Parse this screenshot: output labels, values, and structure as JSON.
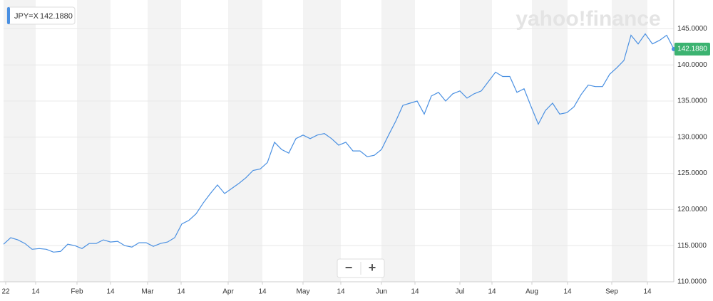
{
  "chart_data": {
    "type": "line",
    "symbol": "JPY=X",
    "last_price": {
      "value": 142.188,
      "label": "142.1880"
    },
    "watermark": "yahoo!finance",
    "series": [
      {
        "name": "JPY=X",
        "color": "#4a90e2",
        "values": [
          115.2,
          116.1,
          115.8,
          115.3,
          114.5,
          114.6,
          114.5,
          114.1,
          114.2,
          115.2,
          115.0,
          114.6,
          115.3,
          115.3,
          115.8,
          115.5,
          115.6,
          115.0,
          114.8,
          115.4,
          115.4,
          114.9,
          115.3,
          115.5,
          116.1,
          118.0,
          118.5,
          119.4,
          120.9,
          122.2,
          123.4,
          122.2,
          122.9,
          123.6,
          124.4,
          125.4,
          125.6,
          126.5,
          129.3,
          128.3,
          127.8,
          129.8,
          130.3,
          129.8,
          130.3,
          130.5,
          129.8,
          128.9,
          129.3,
          128.1,
          128.1,
          127.3,
          127.5,
          128.3,
          130.3,
          132.2,
          134.4,
          134.7,
          135.0,
          133.2,
          135.7,
          136.2,
          135.0,
          136.0,
          136.4,
          135.4,
          136.0,
          136.4,
          137.7,
          139.0,
          138.4,
          138.4,
          136.2,
          136.7,
          134.2,
          131.8,
          133.7,
          134.7,
          133.2,
          133.4,
          134.2,
          135.9,
          137.2,
          137.0,
          137.0,
          138.7,
          139.6,
          140.6,
          144.1,
          142.9,
          144.3,
          142.9,
          143.4,
          144.1,
          142.2
        ]
      }
    ],
    "xlim": [
      0,
      94
    ],
    "xticks": [
      {
        "value": 0.3,
        "label": "22"
      },
      {
        "value": 4.5,
        "label": "14"
      },
      {
        "value": 10.3,
        "label": "Feb"
      },
      {
        "value": 15,
        "label": "14"
      },
      {
        "value": 20.2,
        "label": "Mar"
      },
      {
        "value": 24.9,
        "label": "14"
      },
      {
        "value": 31.5,
        "label": "Apr"
      },
      {
        "value": 36.3,
        "label": "14"
      },
      {
        "value": 42,
        "label": "May"
      },
      {
        "value": 47.3,
        "label": "14"
      },
      {
        "value": 53,
        "label": "Jun"
      },
      {
        "value": 57.7,
        "label": "14"
      },
      {
        "value": 64,
        "label": "Jul"
      },
      {
        "value": 68.5,
        "label": "14"
      },
      {
        "value": 74.1,
        "label": "Aug"
      },
      {
        "value": 79.1,
        "label": "14"
      },
      {
        "value": 85.3,
        "label": "Sep"
      },
      {
        "value": 90.3,
        "label": "14"
      }
    ],
    "ylim": [
      110,
      147
    ],
    "yticks": [
      {
        "value": 110,
        "label": "110.0000"
      },
      {
        "value": 115,
        "label": "115.0000"
      },
      {
        "value": 120,
        "label": "120.0000"
      },
      {
        "value": 125,
        "label": "125.0000"
      },
      {
        "value": 130,
        "label": "130.0000"
      },
      {
        "value": 135,
        "label": "135.0000"
      },
      {
        "value": 140,
        "label": "140.0000"
      },
      {
        "value": 145,
        "label": "145.0000"
      }
    ],
    "grid": true,
    "shaded_bands": true,
    "zoom_controls": [
      "−",
      "+"
    ]
  }
}
